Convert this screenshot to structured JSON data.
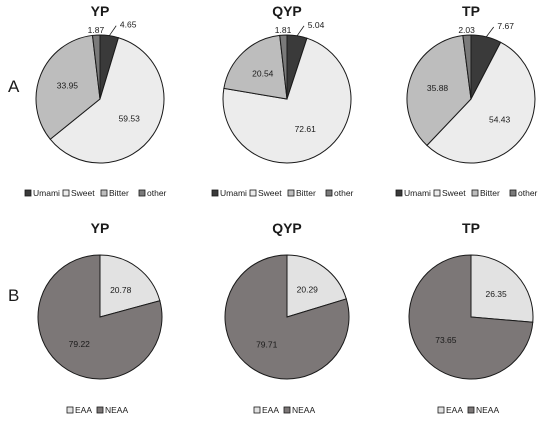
{
  "panels": [
    {
      "label": "A",
      "row": 0
    },
    {
      "label": "B",
      "row": 1
    }
  ],
  "colors": {
    "Umami": "#3a3a3a",
    "Sweet": "#ececec",
    "Bitter": "#bdbdbd",
    "other": "#7a7a7a",
    "EAA": "#e2e2e2",
    "NEAA": "#7c7777",
    "stroke": "#1a1a1a"
  },
  "chart_data": [
    {
      "type": "pie",
      "title": "YP",
      "row": 0,
      "col": 0,
      "categories": [
        "Umami",
        "Sweet",
        "Bitter",
        "other"
      ],
      "values": [
        4.65,
        59.53,
        33.95,
        1.87
      ],
      "legend": [
        "Umami",
        "Sweet",
        "Bitter",
        "other"
      ]
    },
    {
      "type": "pie",
      "title": "QYP",
      "row": 0,
      "col": 1,
      "categories": [
        "Umami",
        "Sweet",
        "Bitter",
        "other"
      ],
      "values": [
        5.04,
        72.61,
        20.54,
        1.81
      ],
      "legend": [
        "Umami",
        "Sweet",
        "Bitter",
        "other"
      ]
    },
    {
      "type": "pie",
      "title": "TP",
      "row": 0,
      "col": 2,
      "categories": [
        "Umami",
        "Sweet",
        "Bitter",
        "other"
      ],
      "values": [
        7.67,
        54.43,
        35.88,
        2.03
      ],
      "legend": [
        "Umami",
        "Sweet",
        "Bitter",
        "other"
      ]
    },
    {
      "type": "pie",
      "title": "YP",
      "row": 1,
      "col": 0,
      "categories": [
        "EAA",
        "NEAA"
      ],
      "values": [
        20.78,
        79.22
      ],
      "legend": [
        "EAA",
        "NEAA"
      ]
    },
    {
      "type": "pie",
      "title": "QYP",
      "row": 1,
      "col": 1,
      "categories": [
        "EAA",
        "NEAA"
      ],
      "values": [
        20.29,
        79.71
      ],
      "legend": [
        "EAA",
        "NEAA"
      ]
    },
    {
      "type": "pie",
      "title": "TP",
      "row": 1,
      "col": 2,
      "categories": [
        "EAA",
        "NEAA"
      ],
      "values": [
        26.35,
        73.65
      ],
      "legend": [
        "EAA",
        "NEAA"
      ]
    }
  ]
}
